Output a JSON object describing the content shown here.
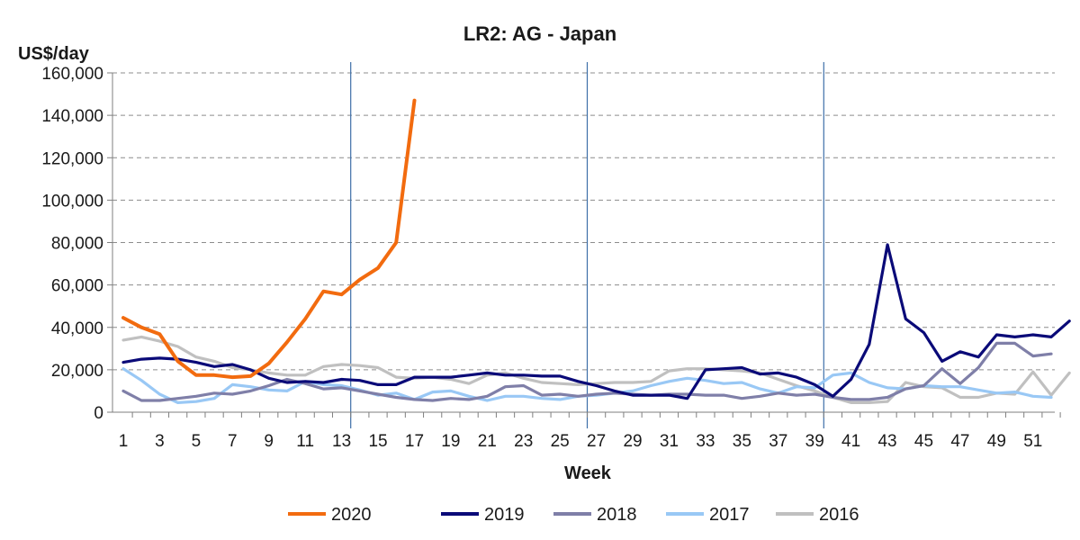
{
  "chart_data": {
    "type": "line",
    "title": "LR2: AG - Japan",
    "ylabel": "US$/day",
    "xlabel": "Week",
    "ylim": [
      0,
      160000
    ],
    "xlim": [
      1,
      52
    ],
    "grid": "horizontal dashed",
    "legend_position": "bottom",
    "yticks": [
      "0",
      "20,000",
      "40,000",
      "60,000",
      "80,000",
      "100,000",
      "120,000",
      "140,000",
      "160,000"
    ],
    "ytick_values": [
      0,
      20000,
      40000,
      60000,
      80000,
      100000,
      120000,
      140000,
      160000
    ],
    "xticks": [
      "1",
      "3",
      "5",
      "7",
      "9",
      "11",
      "13",
      "15",
      "17",
      "19",
      "21",
      "23",
      "25",
      "27",
      "29",
      "31",
      "33",
      "35",
      "37",
      "39",
      "41",
      "43",
      "45",
      "47",
      "49",
      "51"
    ],
    "vlines": [
      13,
      26,
      39
    ],
    "series": [
      {
        "name": "2020",
        "color": "#f26b0f",
        "values": [
          44500,
          40000,
          36800,
          24000,
          17500,
          17500,
          16500,
          17000,
          23000,
          33000,
          44000,
          57000,
          55500,
          62500,
          68000,
          80000,
          147000
        ]
      },
      {
        "name": "2019",
        "color": "#0a0a78",
        "values": [
          23500,
          25000,
          25500,
          25000,
          23500,
          21500,
          22500,
          20000,
          16000,
          14000,
          14500,
          14000,
          15500,
          15000,
          13000,
          13000,
          16500,
          16500,
          16500,
          17500,
          18500,
          17500,
          17500,
          17000,
          17000,
          14500,
          12500,
          10000,
          8000,
          8000,
          8000,
          6500,
          20000,
          20500,
          21000,
          18000,
          18500,
          16500,
          13000,
          7500,
          15500,
          32000,
          79000,
          44000,
          37500,
          24000,
          28500,
          26000,
          36500,
          35500,
          36500,
          35500,
          43000
        ]
      },
      {
        "name": "2018",
        "color": "#7f7fa8",
        "values": [
          10000,
          5500,
          5500,
          6500,
          7500,
          9000,
          8500,
          10000,
          12500,
          15500,
          13500,
          11000,
          11500,
          10000,
          8500,
          7000,
          6000,
          5500,
          6500,
          6000,
          7500,
          12000,
          12500,
          8000,
          8500,
          7500,
          8500,
          9000,
          8500,
          8000,
          8500,
          8500,
          8000,
          8000,
          6500,
          7500,
          9000,
          8000,
          8500,
          7000,
          6000,
          6000,
          7000,
          11000,
          12500,
          20500,
          13500,
          21000,
          32500,
          32500,
          26500,
          27500
        ]
      },
      {
        "name": "2017",
        "color": "#99c8f5",
        "values": [
          20500,
          15000,
          8500,
          4500,
          5000,
          6500,
          13000,
          12000,
          10500,
          10000,
          14500,
          13000,
          12500,
          10500,
          8000,
          9000,
          6000,
          9500,
          10000,
          7500,
          5500,
          7500,
          7500,
          6500,
          6000,
          7500,
          8000,
          9000,
          10000,
          12500,
          14500,
          16000,
          15000,
          13500,
          14000,
          11000,
          9000,
          12000,
          11500,
          17500,
          18500,
          14000,
          11500,
          11000,
          12500,
          12000,
          12000,
          10500,
          9000,
          9500,
          7500,
          7000
        ]
      },
      {
        "name": "2016",
        "color": "#c0c0c0",
        "values": [
          34000,
          35500,
          33500,
          31000,
          26000,
          24000,
          21000,
          20000,
          18500,
          17500,
          17500,
          21500,
          22500,
          22000,
          21000,
          16500,
          16000,
          16500,
          15500,
          13500,
          17500,
          18500,
          16000,
          14000,
          13500,
          13000,
          13500,
          14000,
          14000,
          14500,
          19500,
          20500,
          20500,
          20000,
          19500,
          18500,
          15500,
          12500,
          10000,
          7000,
          4500,
          4500,
          5000,
          14000,
          12000,
          11500,
          7000,
          7000,
          9000,
          8500,
          19000,
          8000,
          18500
        ]
      }
    ]
  }
}
